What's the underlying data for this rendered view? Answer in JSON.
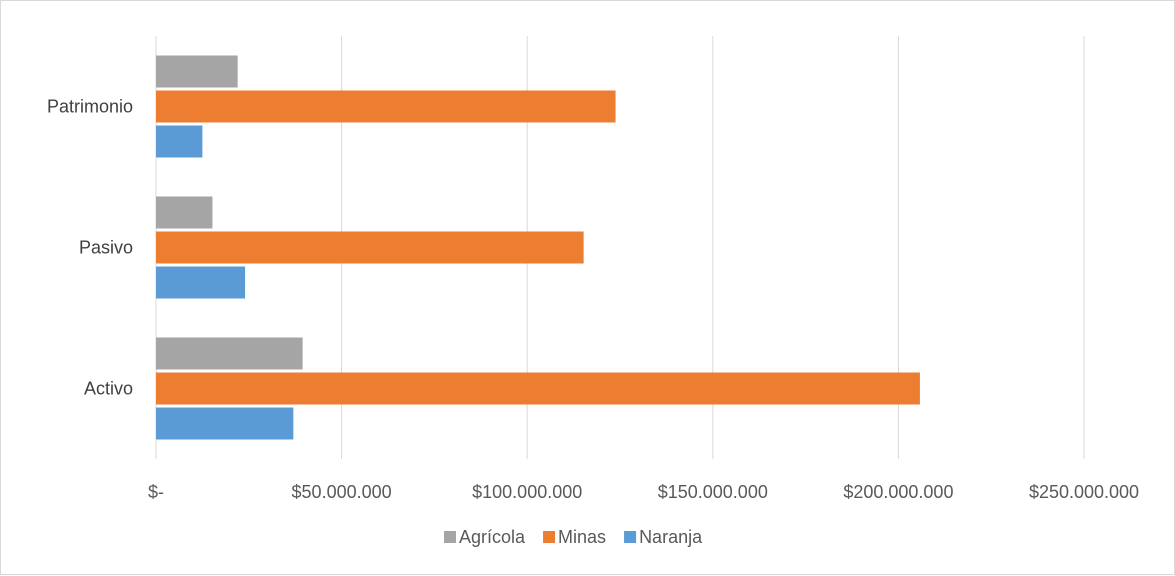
{
  "chart_data": {
    "type": "bar",
    "orientation": "horizontal",
    "categories": [
      "Activo",
      "Pasivo",
      "Patrimonio"
    ],
    "series": [
      {
        "name": "Agrícola",
        "color": "#a5a5a5",
        "values": [
          39500000,
          15200000,
          22000000
        ]
      },
      {
        "name": "Minas",
        "color": "#ed7d31",
        "values": [
          205800000,
          115200000,
          123800000
        ]
      },
      {
        "name": "Naranja",
        "color": "#5b9bd5",
        "values": [
          37000000,
          24000000,
          12500000
        ]
      }
    ],
    "xlim": [
      0,
      250000000
    ],
    "xticks": [
      0,
      50000000,
      100000000,
      150000000,
      200000000,
      250000000
    ],
    "xtick_labels": [
      "$-",
      "$50.000.000",
      "$100.000.000",
      "$150.000.000",
      "$200.000.000",
      "$250.000.000"
    ],
    "title": "",
    "xlabel": "",
    "ylabel": "",
    "grid": "vertical",
    "legend_position": "bottom",
    "legend_order": [
      "Agrícola",
      "Minas",
      "Naranja"
    ]
  }
}
